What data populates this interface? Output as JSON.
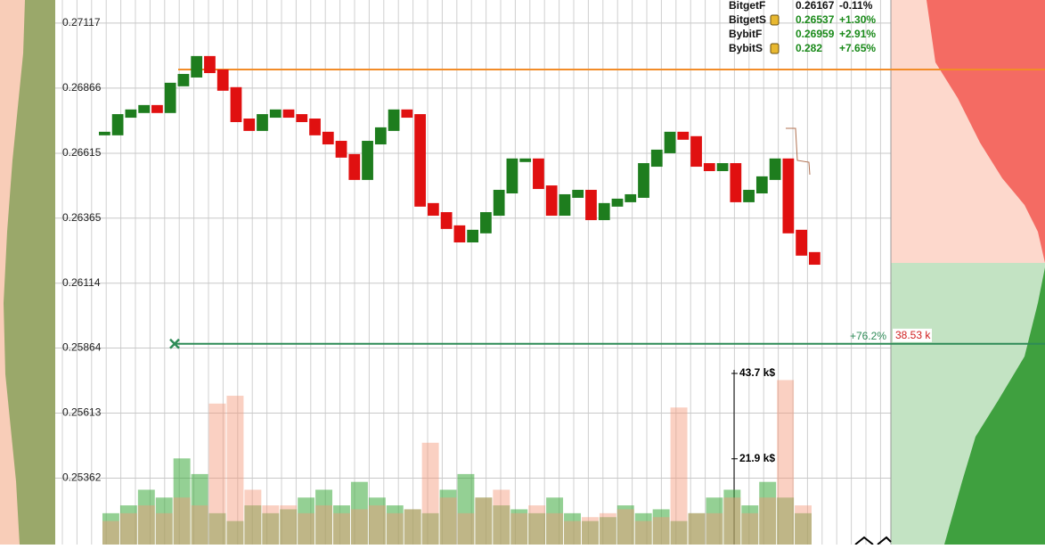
{
  "watchlist": [
    {
      "name": "BitgetF",
      "locked": false,
      "price": 0.26167,
      "change": "-0.11%",
      "color": "#111111"
    },
    {
      "name": "BitgetS",
      "locked": true,
      "price": 0.26537,
      "change": "+1.30%",
      "color": "#1a8a1a"
    },
    {
      "name": "BybitF",
      "locked": false,
      "price": 0.26959,
      "change": "+2.91%",
      "color": "#1a8a1a"
    },
    {
      "name": "BybitS",
      "locked": true,
      "price": 0.282,
      "change": "+7.65%",
      "color": "#1a8a1a"
    }
  ],
  "price_chart": {
    "ylim": [
      0.25106,
      0.27206
    ],
    "yticks": [
      0.27117,
      0.26866,
      0.26615,
      0.26365,
      0.26114,
      0.25864,
      0.25613,
      0.25362
    ],
    "closes": [
      0.26691,
      0.26759,
      0.26777,
      0.26794,
      0.26777,
      0.2688,
      0.26914,
      0.26983,
      0.26931,
      0.26863,
      0.26742,
      0.26708,
      0.26759,
      0.26777,
      0.26759,
      0.26742,
      0.26691,
      0.26656,
      0.26605,
      0.26519,
      0.26656,
      0.26708,
      0.26777,
      0.26759,
      0.26416,
      0.26381,
      0.2633,
      0.26278,
      0.26313,
      0.26381,
      0.26467,
      0.26588,
      0.26588,
      0.26484,
      0.26381,
      0.2645,
      0.26467,
      0.26364,
      0.26416,
      0.26433,
      0.2645,
      0.2657,
      0.26622,
      0.26691,
      0.26674,
      0.2657,
      0.26553,
      0.2657,
      0.26433,
      0.26467,
      0.26519,
      0.26588,
      0.26313,
      0.26227,
      0.26192
    ],
    "up_color": "#1e7d1e",
    "down_color": "#e01010"
  },
  "levels": [
    {
      "price": 0.26938,
      "color": "#f28c28"
    },
    {
      "price": 0.2588,
      "color": "#2e8b57",
      "percent": "+76.2%",
      "size": "38.53 k"
    }
  ],
  "volume_chart": {
    "ylim": [
      0,
      43.7
    ],
    "yticks": [
      {
        "value": 43.7,
        "label": "43.7 k$"
      },
      {
        "value": 21.9,
        "label": "21.9 k$"
      }
    ],
    "series": [
      {
        "name": "buy",
        "color": "rgba(60,170,60,0.55)",
        "values": [
          8,
          10,
          14,
          12,
          22,
          18,
          8,
          6,
          10,
          8,
          9,
          12,
          14,
          10,
          16,
          12,
          10,
          9,
          8,
          14,
          18,
          12,
          10,
          9,
          8,
          12,
          8,
          6,
          7,
          10,
          8,
          9,
          6,
          8,
          12,
          14,
          10,
          16,
          12,
          8
        ]
      },
      {
        "name": "sell",
        "color": "rgba(245,150,120,0.45)",
        "values": [
          6,
          8,
          10,
          8,
          12,
          10,
          36,
          38,
          14,
          10,
          10,
          8,
          10,
          8,
          9,
          10,
          8,
          9,
          26,
          12,
          8,
          12,
          14,
          8,
          10,
          8,
          6,
          7,
          8,
          9,
          6,
          7,
          35,
          8,
          8,
          12,
          8,
          12,
          42,
          10
        ]
      }
    ]
  }
}
